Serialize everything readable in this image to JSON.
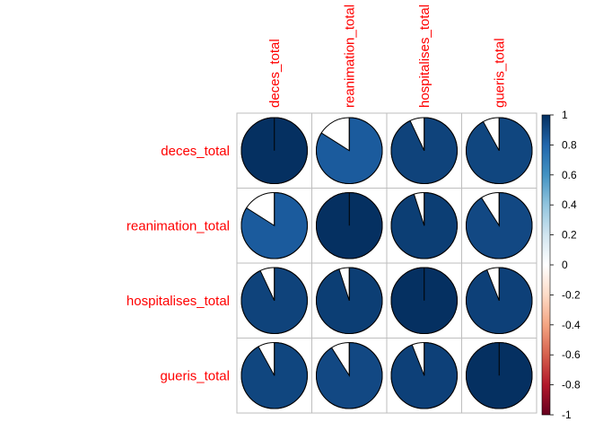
{
  "chart_data": {
    "type": "heatmap",
    "style": "corrplot-pie",
    "variables": [
      "deces_total",
      "reanimation_total",
      "hospitalises_total",
      "gueris_total"
    ],
    "matrix": [
      [
        1.0,
        0.84,
        0.93,
        0.92
      ],
      [
        0.84,
        1.0,
        0.95,
        0.91
      ],
      [
        0.93,
        0.95,
        1.0,
        0.94
      ],
      [
        0.92,
        0.91,
        0.94,
        1.0
      ]
    ],
    "colorbar": {
      "range": [
        -1,
        1
      ],
      "ticks": [
        "1",
        "0.8",
        "0.6",
        "0.4",
        "0.2",
        "0",
        "-0.2",
        "-0.4",
        "-0.6",
        "-0.8",
        "-1"
      ],
      "colors": [
        "#67001F",
        "#B2182B",
        "#D6604D",
        "#F4A582",
        "#FDDBC7",
        "#FFFFFF",
        "#D1E5F0",
        "#92C5DE",
        "#4393C3",
        "#2166AC",
        "#053061"
      ]
    },
    "label_color": "#FF0000",
    "grid_color": "#BEBEBE"
  }
}
